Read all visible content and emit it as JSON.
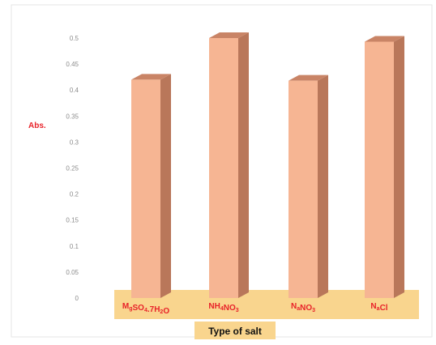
{
  "chart_data": {
    "type": "bar",
    "title": "",
    "xlabel": "Type of salt",
    "ylabel": "Abs.",
    "categories": [
      "MgSO4.7H2O",
      "NH4NO3",
      "NaNO3",
      "NaCl"
    ],
    "category_labels": [
      [
        {
          "t": "M",
          "sub": false
        },
        {
          "t": "g",
          "sub": true
        },
        {
          "t": "SO",
          "sub": false
        },
        {
          "t": "4",
          "sub": true
        },
        {
          "t": ".7H",
          "sub": false
        },
        {
          "t": "2",
          "sub": true
        },
        {
          "t": "O",
          "sub": false
        }
      ],
      [
        {
          "t": "NH",
          "sub": false
        },
        {
          "t": "4",
          "sub": true
        },
        {
          "t": "NO",
          "sub": false
        },
        {
          "t": "3",
          "sub": true
        }
      ],
      [
        {
          "t": "N",
          "sub": false
        },
        {
          "t": "a",
          "sub": true
        },
        {
          "t": "NO",
          "sub": false
        },
        {
          "t": "3",
          "sub": true
        }
      ],
      [
        {
          "t": "N",
          "sub": false
        },
        {
          "t": "a",
          "sub": true
        },
        {
          "t": "Cl",
          "sub": false
        }
      ]
    ],
    "values": [
      0.42,
      0.5,
      0.418,
      0.493
    ],
    "ylim": [
      0,
      0.5
    ],
    "yticks": [
      0,
      0.05,
      0.1,
      0.15,
      0.2,
      0.25,
      0.3,
      0.35,
      0.4,
      0.45,
      0.5
    ],
    "ytick_labels": [
      "0",
      "0.05",
      "0.1",
      "0.15",
      "0.2",
      "0.25",
      "0.3",
      "0.35",
      "0.4",
      "0.45",
      "0.5"
    ],
    "grid": false,
    "colors": {
      "bar_front": "#f6b593",
      "bar_side": "#b9775a",
      "bar_top": "#c98466",
      "category_band": "#f9d58e",
      "label_red": "#e8232a",
      "tick_gray": "#8c8c8c"
    }
  }
}
